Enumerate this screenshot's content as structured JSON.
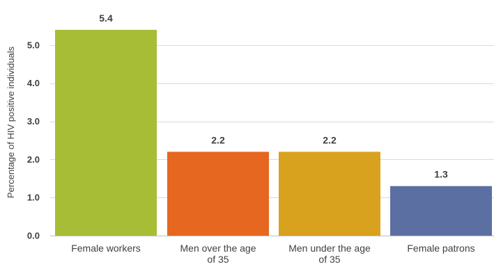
{
  "chart_data": {
    "type": "bar",
    "categories": [
      "Female workers",
      "Men over the age of 35",
      "Men under the age of 35",
      "Female patrons"
    ],
    "category_lines": [
      [
        "Female workers"
      ],
      [
        "Men over the age",
        "of 35"
      ],
      [
        "Men under the age",
        "of 35"
      ],
      [
        "Female patrons"
      ]
    ],
    "values": [
      5.4,
      2.2,
      2.2,
      1.3
    ],
    "data_labels": [
      "5.4",
      "2.2",
      "2.2",
      "1.3"
    ],
    "bar_colors": [
      "#a7bd35",
      "#e6671f",
      "#d9a21e",
      "#5b6fa3"
    ],
    "ylabel": "Percentage of HIV positive individuals",
    "yticks": [
      0.0,
      1.0,
      2.0,
      3.0,
      4.0,
      5.0
    ],
    "ytick_labels": [
      "0.0",
      "1.0",
      "2.0",
      "3.0",
      "4.0",
      "5.0"
    ],
    "ylim": [
      0,
      6.0
    ],
    "grid": true,
    "legend": "none"
  },
  "colors": {
    "gridline": "#d9d9d9",
    "axis": "#bfbfbf",
    "text": "#404040"
  }
}
